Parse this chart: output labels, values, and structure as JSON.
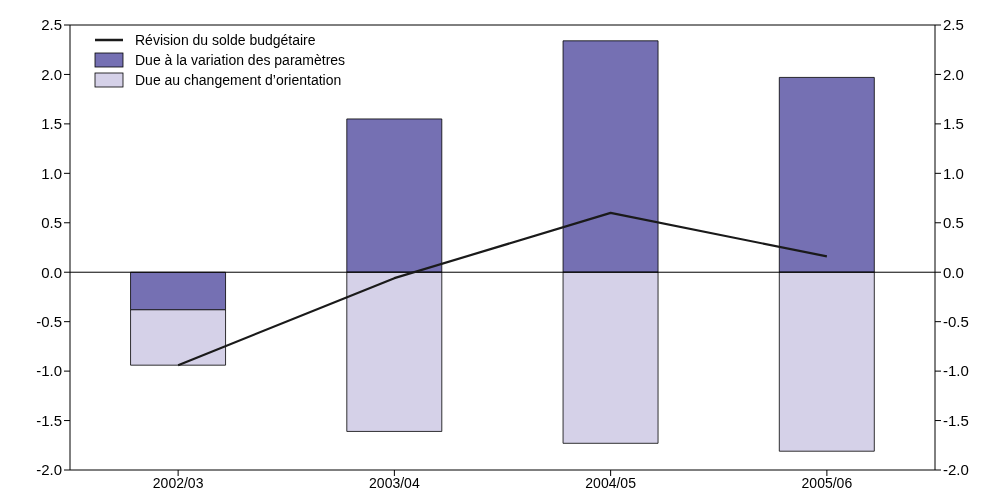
{
  "chart_data": {
    "type": "bar",
    "stacked": true,
    "categories": [
      "2002/03",
      "2003/04",
      "2004/05",
      "2005/06"
    ],
    "series": [
      {
        "name": "Due à la variation des paramètres",
        "color": "#7570b3",
        "values": [
          -0.38,
          1.55,
          2.34,
          1.97
        ]
      },
      {
        "name": "Due au changement d’orientation",
        "color": "#d5d1e8",
        "values": [
          -0.56,
          -1.61,
          -1.73,
          -1.81
        ]
      },
      {
        "name": "Révision du solde budgétaire",
        "type": "line",
        "color": "#1a1a1a",
        "values": [
          -0.94,
          -0.06,
          0.6,
          0.16
        ]
      }
    ],
    "ylim": [
      -2.0,
      2.5
    ],
    "yticks": [
      {
        "value": -2.0,
        "label": "-2.0"
      },
      {
        "value": -1.5,
        "label": "-1.5"
      },
      {
        "value": -1.0,
        "label": "-1.0"
      },
      {
        "value": -0.5,
        "label": "-0.5"
      },
      {
        "value": 0,
        "label": "0.0"
      },
      {
        "value": 0.5,
        "label": "0.5"
      },
      {
        "value": 1.0,
        "label": "1.0"
      },
      {
        "value": 1.5,
        "label": "1.5"
      },
      {
        "value": 2.0,
        "label": "2.0"
      },
      {
        "value": 2.5,
        "label": "2.5"
      }
    ],
    "y2lim": [
      -2.0,
      2.5
    ],
    "y2ticks": [
      {
        "value": -2.0,
        "label": "-2.0"
      },
      {
        "value": -1.5,
        "label": "-1.5"
      },
      {
        "value": -1.0,
        "label": "-1.0"
      },
      {
        "value": -0.5,
        "label": "-0.5"
      },
      {
        "value": 0,
        "label": "0.0"
      },
      {
        "value": 0.5,
        "label": "0.5"
      },
      {
        "value": 1.0,
        "label": "1.0"
      },
      {
        "value": 1.5,
        "label": "1.5"
      },
      {
        "value": 2.0,
        "label": "2.0"
      },
      {
        "value": 2.5,
        "label": "2.5"
      }
    ],
    "ref_lines": [
      {
        "axis": "y",
        "value": 0,
        "color": "#000000"
      }
    ],
    "grid": false,
    "legend": "top left",
    "marker": "none",
    "line_style": "solid"
  }
}
